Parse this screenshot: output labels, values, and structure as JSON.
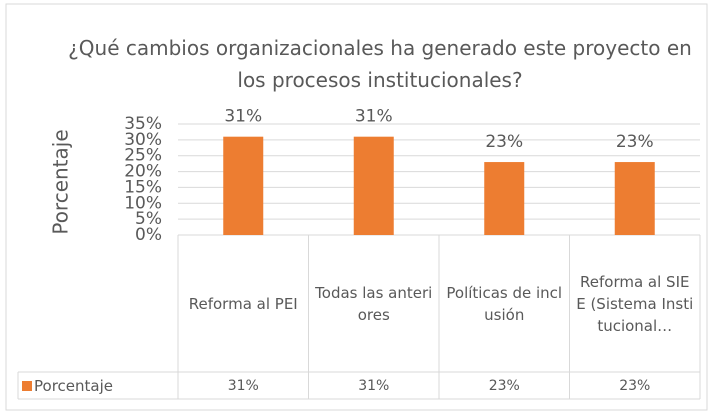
{
  "chart_data": {
    "type": "bar",
    "title": "¿Qué cambios organizacionales ha generado este proyecto en los procesos institucionales?",
    "y_label": "Porcentaje",
    "categories": [
      "Reforma al PEI",
      "Todas las anteriores",
      "Políticas de inclusión",
      "Reforma al SIEE (Sistema Institucional…"
    ],
    "series": [
      {
        "name": "Porcentaje",
        "color": "#ed7d31",
        "values": [
          31,
          31,
          23,
          23
        ],
        "value_labels": [
          "31%",
          "31%",
          "23%",
          "23%"
        ]
      }
    ],
    "ylim": [
      0,
      35
    ],
    "yticks": [
      {
        "value": 0,
        "label": "0%"
      },
      {
        "value": 5,
        "label": "5%"
      },
      {
        "value": 10,
        "label": "10%"
      },
      {
        "value": 15,
        "label": "15%"
      },
      {
        "value": 20,
        "label": "20%"
      },
      {
        "value": 25,
        "label": "25%"
      },
      {
        "value": 30,
        "label": "30%"
      },
      {
        "value": 35,
        "label": "35%"
      }
    ],
    "grid": true
  }
}
